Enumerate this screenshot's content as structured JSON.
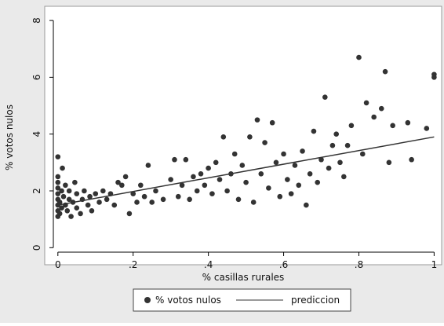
{
  "chart_data": {
    "type": "scatter",
    "xlabel": "% casillas rurales",
    "ylabel": "% votos nulos",
    "xlim": [
      -0.035,
      1.02
    ],
    "ylim": [
      -0.6,
      8.5
    ],
    "xticks": [
      0,
      {
        "value": 0.2,
        "label": ".2"
      },
      {
        "value": 0.4,
        "label": ".4"
      },
      {
        "value": 0.6,
        "label": ".6"
      },
      {
        "value": 0.8,
        "label": ".8"
      },
      1
    ],
    "yticks": [
      0,
      2,
      4,
      6,
      8
    ],
    "grid": false,
    "legend": "bottom",
    "series": [
      {
        "name": "% votos nulos",
        "type": "scatter",
        "color": "#333333",
        "x": [
          0,
          0,
          0,
          0,
          0,
          0,
          0,
          0,
          0,
          0.005,
          0.005,
          0.01,
          0.01,
          0.012,
          0.015,
          0.02,
          0.02,
          0.025,
          0.03,
          0.03,
          0.035,
          0.04,
          0.045,
          0.05,
          0.05,
          0.06,
          0.065,
          0.07,
          0.08,
          0.085,
          0.09,
          0.1,
          0.11,
          0.12,
          0.13,
          0.14,
          0.15,
          0.16,
          0.17,
          0.18,
          0.19,
          0.2,
          0.21,
          0.22,
          0.23,
          0.24,
          0.25,
          0.26,
          0.28,
          0.3,
          0.31,
          0.32,
          0.33,
          0.34,
          0.35,
          0.36,
          0.37,
          0.38,
          0.39,
          0.4,
          0.41,
          0.42,
          0.43,
          0.44,
          0.45,
          0.46,
          0.47,
          0.48,
          0.49,
          0.5,
          0.51,
          0.52,
          0.53,
          0.54,
          0.55,
          0.56,
          0.57,
          0.58,
          0.59,
          0.6,
          0.61,
          0.62,
          0.63,
          0.64,
          0.65,
          0.66,
          0.67,
          0.68,
          0.69,
          0.7,
          0.71,
          0.72,
          0.73,
          0.74,
          0.75,
          0.76,
          0.77,
          0.78,
          0.8,
          0.81,
          0.82,
          0.84,
          0.86,
          0.87,
          0.88,
          0.89,
          0.93,
          0.94,
          0.98,
          1,
          1
        ],
        "values": [
          1.1,
          1.3,
          1.5,
          1.7,
          1.9,
          2.1,
          2.3,
          2.5,
          3.2,
          1.2,
          1.6,
          2.0,
          1.4,
          2.8,
          1.8,
          1.5,
          2.2,
          1.3,
          1.7,
          2.0,
          1.1,
          1.6,
          2.3,
          1.4,
          1.9,
          1.2,
          1.7,
          2.0,
          1.5,
          1.8,
          1.3,
          1.9,
          1.6,
          2.0,
          1.7,
          1.9,
          1.5,
          2.3,
          2.2,
          2.5,
          1.2,
          1.9,
          1.6,
          2.2,
          1.8,
          2.9,
          1.6,
          2.0,
          1.7,
          2.4,
          3.1,
          1.8,
          2.2,
          3.1,
          1.7,
          2.5,
          2.0,
          2.6,
          2.2,
          2.8,
          1.9,
          3.0,
          2.4,
          3.9,
          2.0,
          2.6,
          3.3,
          1.7,
          2.9,
          2.3,
          3.9,
          1.6,
          4.5,
          2.6,
          3.7,
          2.1,
          4.4,
          3.0,
          1.8,
          3.3,
          2.4,
          1.9,
          2.9,
          2.2,
          3.4,
          1.5,
          2.6,
          4.1,
          2.3,
          3.1,
          5.3,
          2.8,
          3.6,
          4.0,
          3.0,
          2.5,
          3.6,
          4.3,
          6.7,
          3.3,
          5.1,
          4.6,
          4.9,
          6.2,
          3.0,
          4.3,
          4.4,
          3.1,
          4.2,
          6.0,
          6.1
        ]
      },
      {
        "name": "prediccion",
        "type": "line",
        "color": "#333333",
        "x": [
          0,
          1
        ],
        "values": [
          1.5,
          3.9
        ]
      }
    ]
  }
}
